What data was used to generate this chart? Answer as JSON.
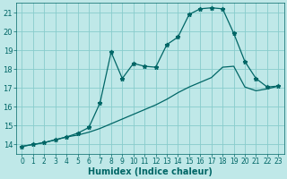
{
  "title": "",
  "xlabel": "Humidex (Indice chaleur)",
  "bg_color": "#bfe8e8",
  "grid_color": "#88cccc",
  "line_color": "#006666",
  "xlim": [
    -0.5,
    23.5
  ],
  "ylim": [
    13.5,
    21.5
  ],
  "yticks": [
    14,
    15,
    16,
    17,
    18,
    19,
    20,
    21
  ],
  "xticks": [
    0,
    1,
    2,
    3,
    4,
    5,
    6,
    7,
    8,
    9,
    10,
    11,
    12,
    13,
    14,
    15,
    16,
    17,
    18,
    19,
    20,
    21,
    22,
    23
  ],
  "curve1_x": [
    0,
    1,
    2,
    3,
    4,
    5,
    6,
    7,
    8,
    9,
    10,
    11,
    12,
    13,
    14,
    15,
    16,
    17,
    18,
    19,
    20,
    21,
    22,
    23
  ],
  "curve1_y": [
    13.9,
    14.0,
    14.1,
    14.25,
    14.4,
    14.6,
    14.9,
    16.2,
    18.9,
    17.5,
    18.3,
    18.15,
    18.1,
    19.3,
    19.7,
    20.9,
    21.2,
    21.25,
    21.2,
    19.9,
    18.4,
    17.5,
    17.05,
    17.1
  ],
  "curve2_x": [
    0,
    1,
    2,
    3,
    4,
    5,
    6,
    7,
    8,
    9,
    10,
    11,
    12,
    13,
    14,
    15,
    16,
    17,
    18,
    19,
    20,
    21,
    22,
    23
  ],
  "curve2_y": [
    13.9,
    14.0,
    14.1,
    14.25,
    14.4,
    14.5,
    14.65,
    14.85,
    15.1,
    15.35,
    15.6,
    15.85,
    16.1,
    16.4,
    16.75,
    17.05,
    17.3,
    17.55,
    18.1,
    18.15,
    17.05,
    16.85,
    16.95,
    17.1
  ],
  "marker": "*",
  "marker_size": 3.5,
  "line_width": 0.9,
  "xlabel_fontsize": 7,
  "tick_fontsize": 6
}
